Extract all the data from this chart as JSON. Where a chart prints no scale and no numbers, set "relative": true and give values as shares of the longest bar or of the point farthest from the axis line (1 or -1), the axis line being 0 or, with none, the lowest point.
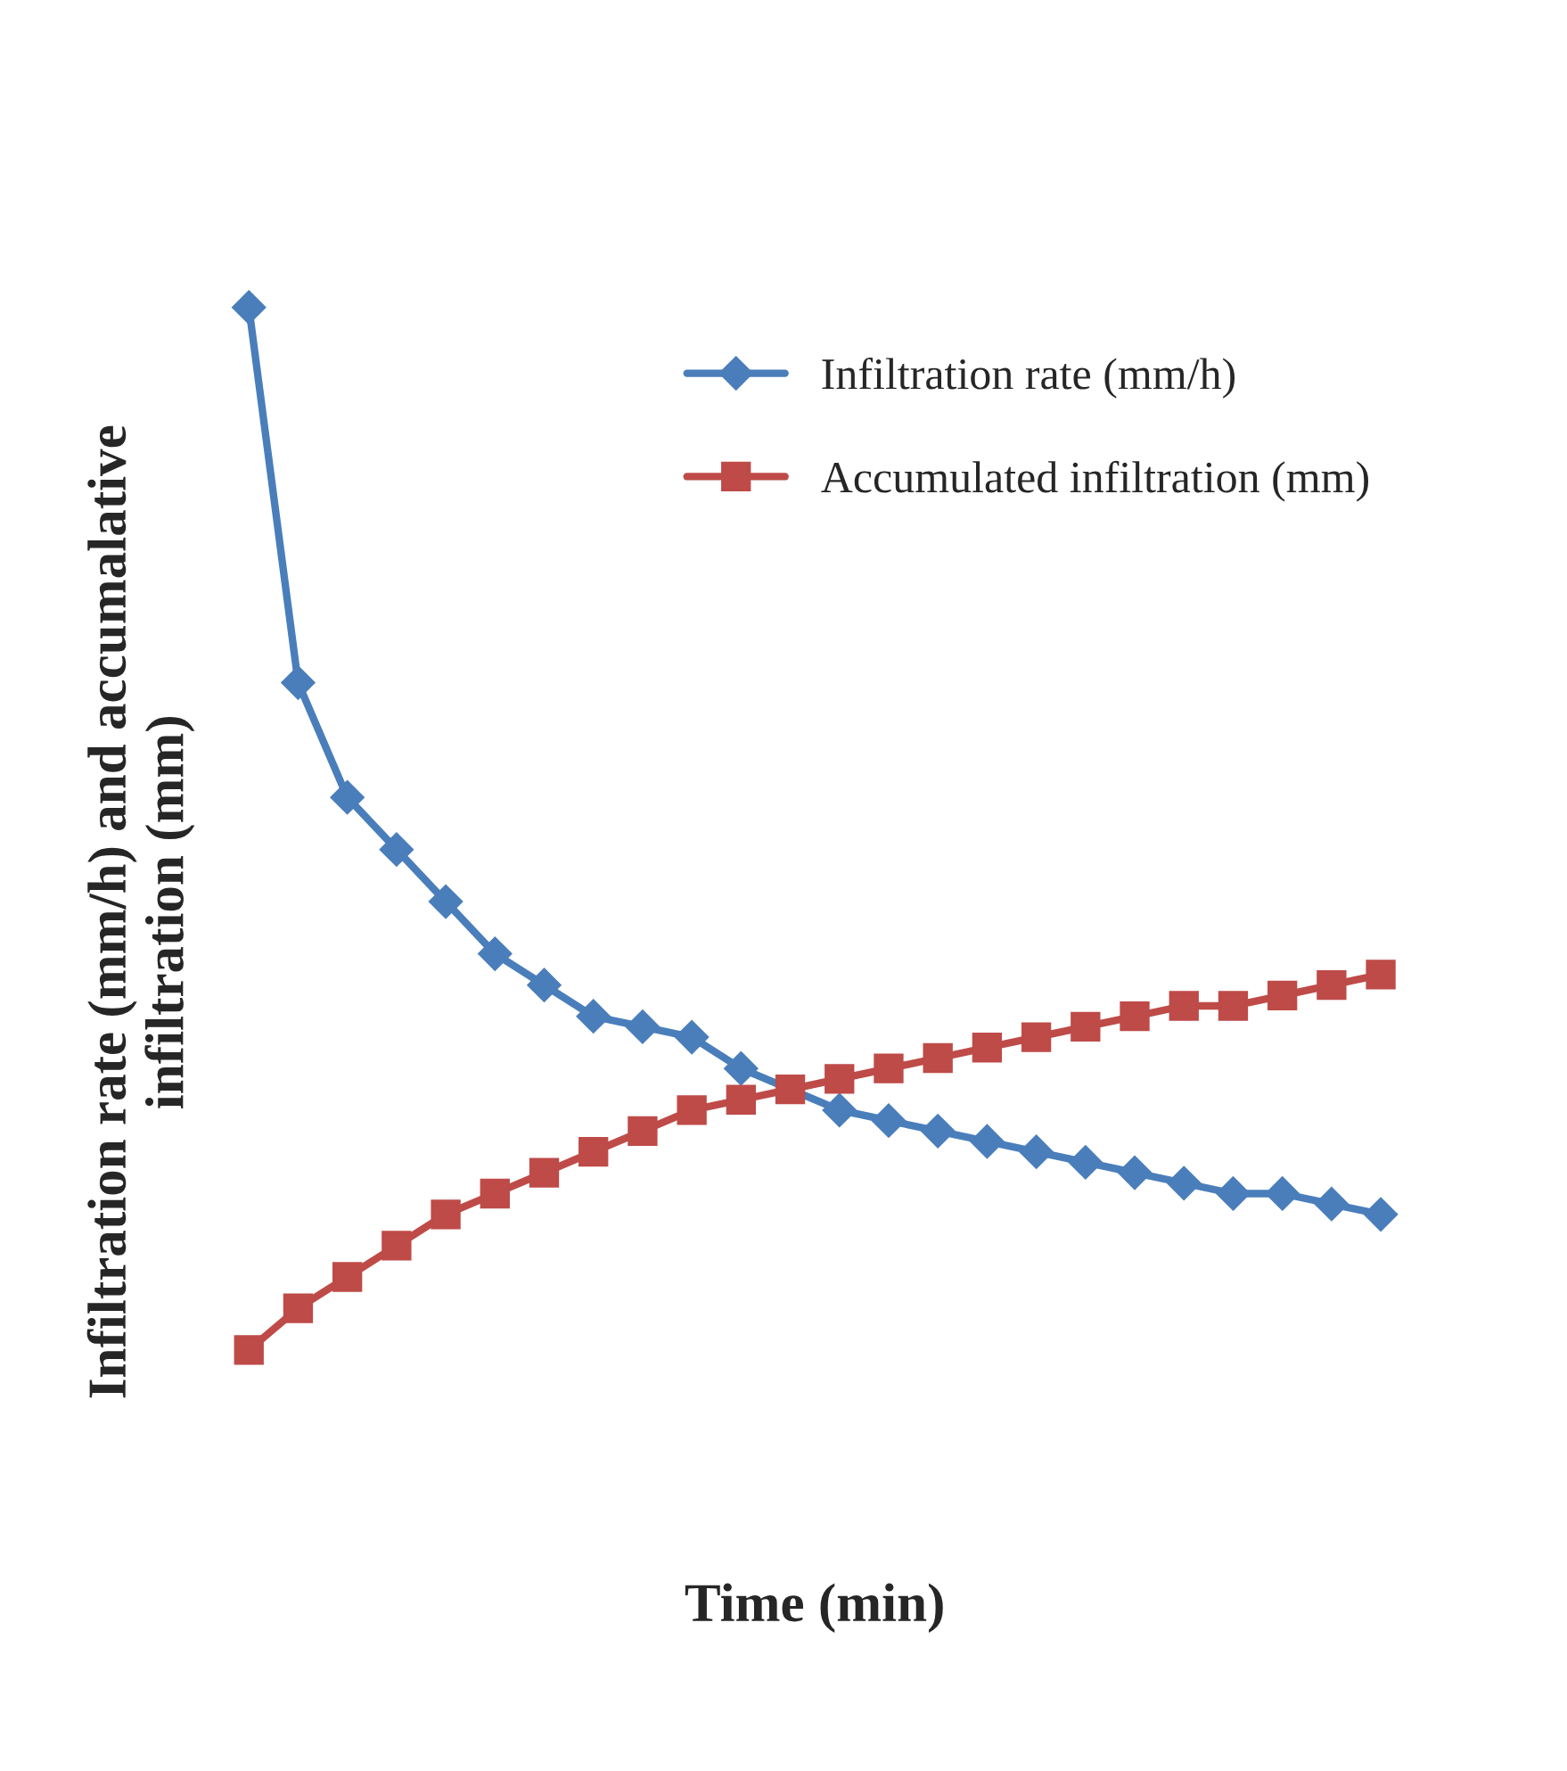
{
  "chart_data": {
    "type": "line",
    "relative": true,
    "xlabel": "Time (min)",
    "ylabel": "Infiltration rate (mm/h) and accumalative\ninfiltration (mm)",
    "categories": [
      null,
      null,
      null,
      null,
      null,
      null,
      null,
      null,
      null,
      null,
      null,
      null,
      null,
      null,
      null,
      null,
      null,
      null,
      null,
      null,
      null,
      null,
      null,
      null
    ],
    "series": [
      {
        "name": "Infiltration rate (mm/h)",
        "color": "#4a7ebb",
        "marker": "diamond",
        "values": [
          1.0,
          0.64,
          0.53,
          0.48,
          0.43,
          0.38,
          0.35,
          0.32,
          0.31,
          0.3,
          0.27,
          null,
          0.23,
          0.22,
          0.21,
          0.2,
          0.19,
          0.18,
          0.17,
          0.16,
          0.15,
          0.15,
          0.14,
          0.13
        ]
      },
      {
        "name": "Accumulated infiltration (mm)",
        "color": "#be4b48",
        "marker": "square",
        "values": [
          0.0,
          0.04,
          0.07,
          0.1,
          0.13,
          0.15,
          0.17,
          0.19,
          0.21,
          0.23,
          0.24,
          0.25,
          0.26,
          0.27,
          0.28,
          0.29,
          0.3,
          0.31,
          0.32,
          0.33,
          0.33,
          0.34,
          0.35,
          0.36
        ]
      }
    ],
    "legend": "top right",
    "grid": false,
    "tick_labels": false,
    "line_style": "solid"
  }
}
